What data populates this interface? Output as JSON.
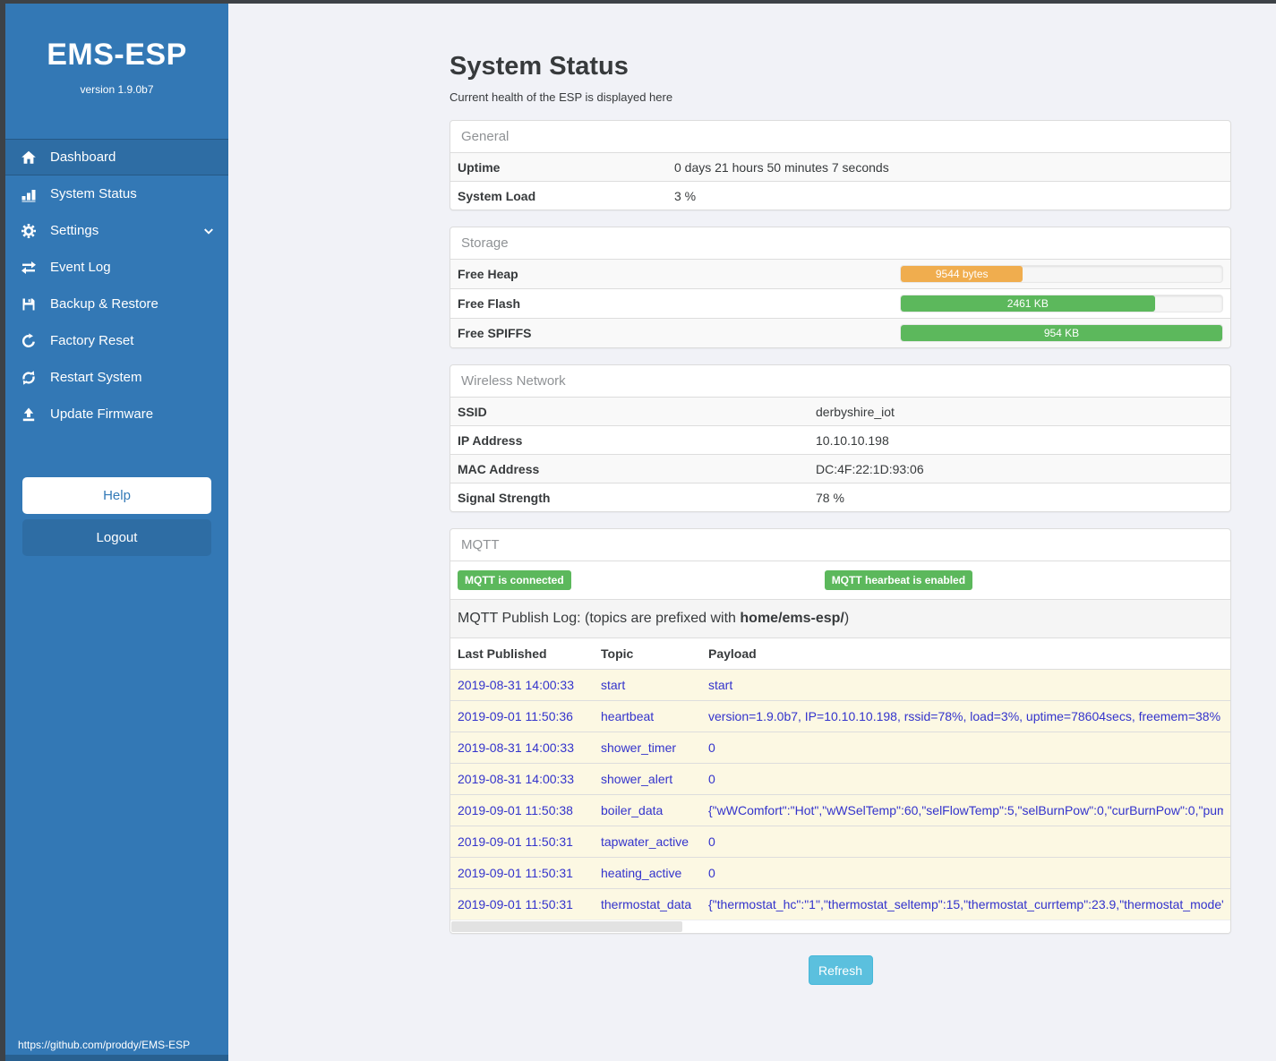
{
  "colors": {
    "sidebar_blue": "#3378b5",
    "active_blue": "#2e6da4",
    "badge_green": "#5cb85c",
    "bar_orange": "#f0ad4e",
    "bar_green": "#5cb85c",
    "refresh_blue": "#5bc0de",
    "log_row_yellow": "#fcf8e3",
    "log_text_blue": "#3333cc"
  },
  "sidebar": {
    "title": "EMS-ESP",
    "version": "version 1.9.0b7",
    "items": [
      {
        "label": "Dashboard",
        "icon": "home-icon",
        "active": true
      },
      {
        "label": "System Status",
        "icon": "levels-icon"
      },
      {
        "label": "Settings",
        "icon": "gear-icon",
        "chevron": true
      },
      {
        "label": "Event Log",
        "icon": "swap-arrows-icon"
      },
      {
        "label": "Backup & Restore",
        "icon": "floppy-icon"
      },
      {
        "label": "Factory Reset",
        "icon": "reload-icon"
      },
      {
        "label": "Restart System",
        "icon": "sync-icon"
      },
      {
        "label": "Update Firmware",
        "icon": "upload-icon"
      }
    ],
    "help_label": "Help",
    "logout_label": "Logout",
    "footer_link": "https://github.com/proddy/EMS-ESP"
  },
  "header": {
    "title": "System Status",
    "subtitle": "Current health of the ESP is displayed here"
  },
  "general": {
    "heading": "General",
    "rows": [
      {
        "label": "Uptime",
        "value": "0 days 21 hours 50 minutes 7 seconds"
      },
      {
        "label": "System Load",
        "value": "3 %"
      }
    ]
  },
  "storage": {
    "heading": "Storage",
    "rows": [
      {
        "label": "Free Heap",
        "bar_label": "9544 bytes",
        "percent": 38,
        "color": "#f0ad4e"
      },
      {
        "label": "Free Flash",
        "bar_label": "2461 KB",
        "percent": 79,
        "color": "#5cb85c"
      },
      {
        "label": "Free SPIFFS",
        "bar_label": "954 KB",
        "percent": 100,
        "color": "#5cb85c"
      }
    ]
  },
  "wireless": {
    "heading": "Wireless Network",
    "rows": [
      {
        "label": "SSID",
        "value": "derbyshire_iot"
      },
      {
        "label": "IP Address",
        "value": "10.10.10.198"
      },
      {
        "label": "MAC Address",
        "value": "DC:4F:22:1D:93:06"
      },
      {
        "label": "Signal Strength",
        "value": "78 %"
      }
    ]
  },
  "mqtt": {
    "heading": "MQTT",
    "badges": [
      "MQTT is connected",
      "MQTT hearbeat is enabled"
    ],
    "log_title_prefix": "MQTT Publish Log: (topics are prefixed with ",
    "log_title_bold": "home/ems-esp/",
    "log_title_suffix": ")",
    "columns": [
      "Last Published",
      "Topic",
      "Payload"
    ],
    "rows": [
      {
        "date": "2019-08-31 14:00:33",
        "topic": "start",
        "payload": "start"
      },
      {
        "date": "2019-09-01 11:50:36",
        "topic": "heartbeat",
        "payload": "version=1.9.0b7, IP=10.10.10.198, rssid=78%, load=3%, uptime=78604secs, freemem=38%"
      },
      {
        "date": "2019-08-31 14:00:33",
        "topic": "shower_timer",
        "payload": "0"
      },
      {
        "date": "2019-08-31 14:00:33",
        "topic": "shower_alert",
        "payload": "0"
      },
      {
        "date": "2019-09-01 11:50:38",
        "topic": "boiler_data",
        "payload": "{\"wWComfort\":\"Hot\",\"wWSelTemp\":60,\"selFlowTemp\":5,\"selBurnPow\":0,\"curBurnPow\":0,\"pump"
      },
      {
        "date": "2019-09-01 11:50:31",
        "topic": "tapwater_active",
        "payload": "0"
      },
      {
        "date": "2019-09-01 11:50:31",
        "topic": "heating_active",
        "payload": "0"
      },
      {
        "date": "2019-09-01 11:50:31",
        "topic": "thermostat_data",
        "payload": "{\"thermostat_hc\":\"1\",\"thermostat_seltemp\":15,\"thermostat_currtemp\":23.9,\"thermostat_mode\":\""
      }
    ]
  },
  "refresh_label": "Refresh"
}
